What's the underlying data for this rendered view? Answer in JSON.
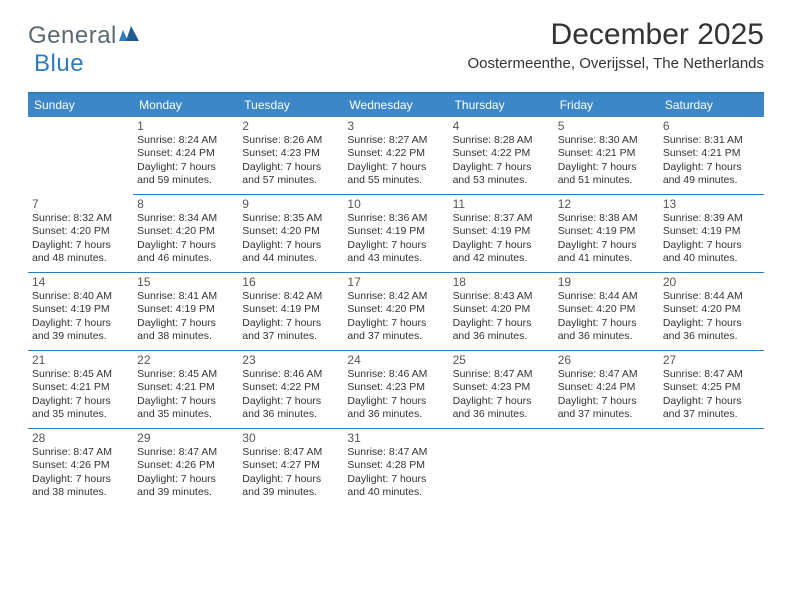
{
  "logo": {
    "part1": "General",
    "part2": "Blue"
  },
  "header": {
    "month_title": "December 2025",
    "location": "Oostermeenthe, Overijssel, The Netherlands"
  },
  "colors": {
    "accent": "#3b87c8",
    "rule": "#2e7bbd",
    "text": "#333333",
    "logo_gray": "#5a6a72",
    "logo_blue": "#2e7bbd",
    "bg": "#ffffff"
  },
  "day_headers": [
    "Sunday",
    "Monday",
    "Tuesday",
    "Wednesday",
    "Thursday",
    "Friday",
    "Saturday"
  ],
  "weeks": [
    [
      {
        "blank": true
      },
      {
        "num": "1",
        "sunrise": "Sunrise: 8:24 AM",
        "sunset": "Sunset: 4:24 PM",
        "dl1": "Daylight: 7 hours",
        "dl2": "and 59 minutes."
      },
      {
        "num": "2",
        "sunrise": "Sunrise: 8:26 AM",
        "sunset": "Sunset: 4:23 PM",
        "dl1": "Daylight: 7 hours",
        "dl2": "and 57 minutes."
      },
      {
        "num": "3",
        "sunrise": "Sunrise: 8:27 AM",
        "sunset": "Sunset: 4:22 PM",
        "dl1": "Daylight: 7 hours",
        "dl2": "and 55 minutes."
      },
      {
        "num": "4",
        "sunrise": "Sunrise: 8:28 AM",
        "sunset": "Sunset: 4:22 PM",
        "dl1": "Daylight: 7 hours",
        "dl2": "and 53 minutes."
      },
      {
        "num": "5",
        "sunrise": "Sunrise: 8:30 AM",
        "sunset": "Sunset: 4:21 PM",
        "dl1": "Daylight: 7 hours",
        "dl2": "and 51 minutes."
      },
      {
        "num": "6",
        "sunrise": "Sunrise: 8:31 AM",
        "sunset": "Sunset: 4:21 PM",
        "dl1": "Daylight: 7 hours",
        "dl2": "and 49 minutes."
      }
    ],
    [
      {
        "num": "7",
        "sunrise": "Sunrise: 8:32 AM",
        "sunset": "Sunset: 4:20 PM",
        "dl1": "Daylight: 7 hours",
        "dl2": "and 48 minutes."
      },
      {
        "num": "8",
        "sunrise": "Sunrise: 8:34 AM",
        "sunset": "Sunset: 4:20 PM",
        "dl1": "Daylight: 7 hours",
        "dl2": "and 46 minutes."
      },
      {
        "num": "9",
        "sunrise": "Sunrise: 8:35 AM",
        "sunset": "Sunset: 4:20 PM",
        "dl1": "Daylight: 7 hours",
        "dl2": "and 44 minutes."
      },
      {
        "num": "10",
        "sunrise": "Sunrise: 8:36 AM",
        "sunset": "Sunset: 4:19 PM",
        "dl1": "Daylight: 7 hours",
        "dl2": "and 43 minutes."
      },
      {
        "num": "11",
        "sunrise": "Sunrise: 8:37 AM",
        "sunset": "Sunset: 4:19 PM",
        "dl1": "Daylight: 7 hours",
        "dl2": "and 42 minutes."
      },
      {
        "num": "12",
        "sunrise": "Sunrise: 8:38 AM",
        "sunset": "Sunset: 4:19 PM",
        "dl1": "Daylight: 7 hours",
        "dl2": "and 41 minutes."
      },
      {
        "num": "13",
        "sunrise": "Sunrise: 8:39 AM",
        "sunset": "Sunset: 4:19 PM",
        "dl1": "Daylight: 7 hours",
        "dl2": "and 40 minutes."
      }
    ],
    [
      {
        "num": "14",
        "sunrise": "Sunrise: 8:40 AM",
        "sunset": "Sunset: 4:19 PM",
        "dl1": "Daylight: 7 hours",
        "dl2": "and 39 minutes."
      },
      {
        "num": "15",
        "sunrise": "Sunrise: 8:41 AM",
        "sunset": "Sunset: 4:19 PM",
        "dl1": "Daylight: 7 hours",
        "dl2": "and 38 minutes."
      },
      {
        "num": "16",
        "sunrise": "Sunrise: 8:42 AM",
        "sunset": "Sunset: 4:19 PM",
        "dl1": "Daylight: 7 hours",
        "dl2": "and 37 minutes."
      },
      {
        "num": "17",
        "sunrise": "Sunrise: 8:42 AM",
        "sunset": "Sunset: 4:20 PM",
        "dl1": "Daylight: 7 hours",
        "dl2": "and 37 minutes."
      },
      {
        "num": "18",
        "sunrise": "Sunrise: 8:43 AM",
        "sunset": "Sunset: 4:20 PM",
        "dl1": "Daylight: 7 hours",
        "dl2": "and 36 minutes."
      },
      {
        "num": "19",
        "sunrise": "Sunrise: 8:44 AM",
        "sunset": "Sunset: 4:20 PM",
        "dl1": "Daylight: 7 hours",
        "dl2": "and 36 minutes."
      },
      {
        "num": "20",
        "sunrise": "Sunrise: 8:44 AM",
        "sunset": "Sunset: 4:20 PM",
        "dl1": "Daylight: 7 hours",
        "dl2": "and 36 minutes."
      }
    ],
    [
      {
        "num": "21",
        "sunrise": "Sunrise: 8:45 AM",
        "sunset": "Sunset: 4:21 PM",
        "dl1": "Daylight: 7 hours",
        "dl2": "and 35 minutes."
      },
      {
        "num": "22",
        "sunrise": "Sunrise: 8:45 AM",
        "sunset": "Sunset: 4:21 PM",
        "dl1": "Daylight: 7 hours",
        "dl2": "and 35 minutes."
      },
      {
        "num": "23",
        "sunrise": "Sunrise: 8:46 AM",
        "sunset": "Sunset: 4:22 PM",
        "dl1": "Daylight: 7 hours",
        "dl2": "and 36 minutes."
      },
      {
        "num": "24",
        "sunrise": "Sunrise: 8:46 AM",
        "sunset": "Sunset: 4:23 PM",
        "dl1": "Daylight: 7 hours",
        "dl2": "and 36 minutes."
      },
      {
        "num": "25",
        "sunrise": "Sunrise: 8:47 AM",
        "sunset": "Sunset: 4:23 PM",
        "dl1": "Daylight: 7 hours",
        "dl2": "and 36 minutes."
      },
      {
        "num": "26",
        "sunrise": "Sunrise: 8:47 AM",
        "sunset": "Sunset: 4:24 PM",
        "dl1": "Daylight: 7 hours",
        "dl2": "and 37 minutes."
      },
      {
        "num": "27",
        "sunrise": "Sunrise: 8:47 AM",
        "sunset": "Sunset: 4:25 PM",
        "dl1": "Daylight: 7 hours",
        "dl2": "and 37 minutes."
      }
    ],
    [
      {
        "num": "28",
        "sunrise": "Sunrise: 8:47 AM",
        "sunset": "Sunset: 4:26 PM",
        "dl1": "Daylight: 7 hours",
        "dl2": "and 38 minutes."
      },
      {
        "num": "29",
        "sunrise": "Sunrise: 8:47 AM",
        "sunset": "Sunset: 4:26 PM",
        "dl1": "Daylight: 7 hours",
        "dl2": "and 39 minutes."
      },
      {
        "num": "30",
        "sunrise": "Sunrise: 8:47 AM",
        "sunset": "Sunset: 4:27 PM",
        "dl1": "Daylight: 7 hours",
        "dl2": "and 39 minutes."
      },
      {
        "num": "31",
        "sunrise": "Sunrise: 8:47 AM",
        "sunset": "Sunset: 4:28 PM",
        "dl1": "Daylight: 7 hours",
        "dl2": "and 40 minutes."
      },
      {
        "blank": true
      },
      {
        "blank": true
      },
      {
        "blank": true
      }
    ]
  ]
}
